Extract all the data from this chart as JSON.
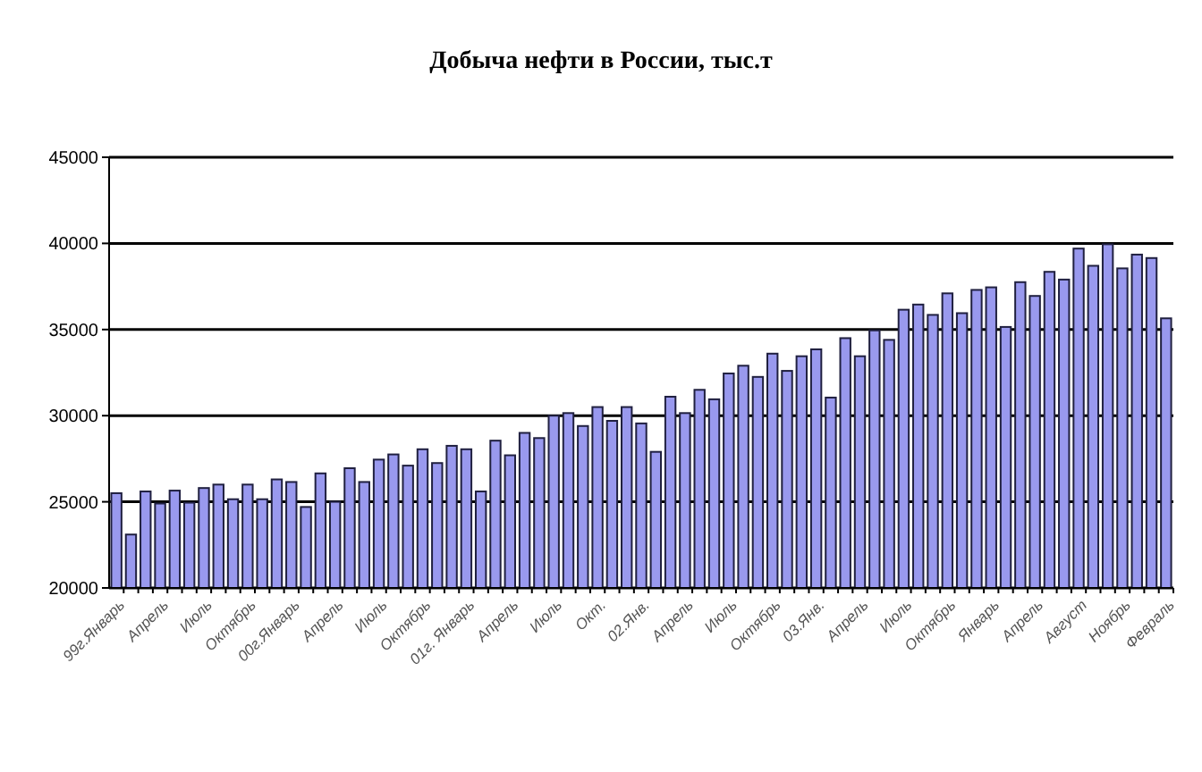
{
  "chart_data": {
    "type": "bar",
    "title": "Добыча нефти в России, тыс.т",
    "categories": [
      "99г.Январь",
      null,
      null,
      "Апрель",
      null,
      null,
      "Июль",
      null,
      null,
      "Октябрь",
      null,
      null,
      "00г.Январь",
      null,
      null,
      "Апрель",
      null,
      null,
      "Июль",
      null,
      null,
      "Октябрь",
      null,
      null,
      "01г. Январь",
      null,
      null,
      "Апрель",
      null,
      null,
      "Июль",
      null,
      null,
      "Окт.",
      null,
      null,
      "02.Янв.",
      null,
      null,
      "Апрель",
      null,
      null,
      "Июль",
      null,
      null,
      "Октябрь",
      null,
      null,
      "03.Янв.",
      null,
      null,
      "Апрель",
      null,
      null,
      "Июль",
      null,
      null,
      "Октябрь",
      null,
      null,
      "Январь",
      null,
      null,
      "Апрель",
      null,
      null,
      "Август",
      null,
      null,
      "Ноябрь",
      null,
      null,
      "Февраль"
    ],
    "values": [
      25500,
      23100,
      25600,
      24900,
      25650,
      24950,
      25800,
      26000,
      25150,
      26000,
      25150,
      26300,
      26150,
      24700,
      26650,
      25000,
      26950,
      26150,
      27450,
      27750,
      27100,
      28050,
      27250,
      28250,
      28050,
      25600,
      28550,
      27700,
      29000,
      28700,
      30000,
      30150,
      29400,
      30500,
      29700,
      30500,
      29550,
      27900,
      31100,
      30150,
      31500,
      30950,
      32450,
      32900,
      32250,
      33600,
      32600,
      33450,
      33850,
      31050,
      34500,
      33450,
      34950,
      34400,
      36150,
      36450,
      35850,
      37100,
      35950,
      37300,
      37450,
      35150,
      37750,
      36950,
      38350,
      37900,
      39700,
      38700,
      39950,
      38550,
      39350,
      39150,
      35650
    ],
    "color": "#9999ee",
    "ylim": [
      20000,
      45000
    ],
    "yticks": [
      20000,
      25000,
      30000,
      35000,
      40000,
      45000
    ],
    "grid": "y"
  }
}
